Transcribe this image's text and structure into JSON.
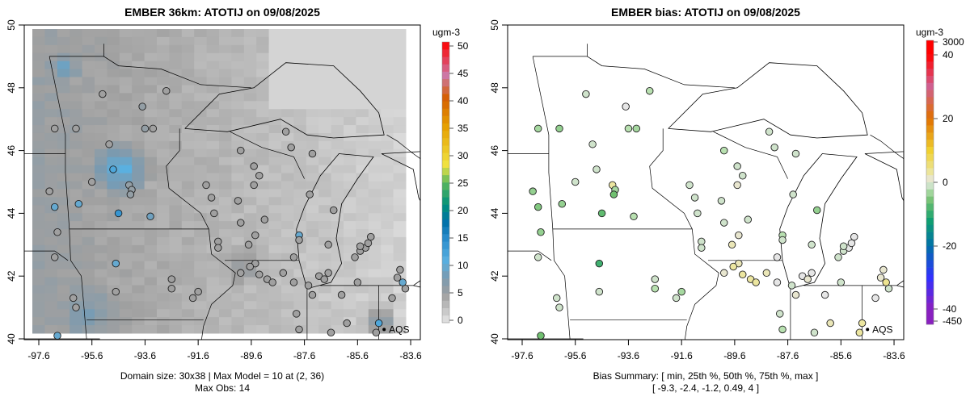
{
  "chart_data": [
    {
      "type": "heatmap+scatter",
      "title": "EMBER 36km: ATOTIJ on 09/08/2025",
      "units": "ugm-3",
      "xlim": [
        -98.1,
        -83.2
      ],
      "ylim": [
        40,
        50
      ],
      "xticks": [
        "-97.6",
        "-95.6",
        "-93.6",
        "-91.6",
        "-89.6",
        "-87.6",
        "-85.6",
        "-83.6"
      ],
      "yticks": [
        "40",
        "42",
        "44",
        "46",
        "48",
        "50"
      ],
      "colorbar_ticks": [
        "0",
        "5",
        "10",
        "15",
        "20",
        "25",
        "30",
        "35",
        "40",
        "45",
        "50"
      ],
      "colorbar_range": [
        0,
        50
      ],
      "footer_line1": "Domain size: 30x38 | Max Model = 10 at (2, 36)",
      "footer_line2": "Max Obs: 14",
      "site_label": "AQS"
    },
    {
      "type": "scatter",
      "title": "EMBER bias: ATOTIJ on 09/08/2025",
      "units": "ugm-3",
      "colorbar_ticks": [
        "3000",
        "40",
        "20",
        "0",
        "-20",
        "-40",
        "-450"
      ],
      "footer_line1": "Bias Summary: [ min, 25th %, 50th %, 75th %, max ]",
      "footer_line2": "[ -9.3,   -2.4,   -1.2,   0.49,   4 ]",
      "site_label": "AQS"
    }
  ],
  "stations": [
    [
      -97.0,
      46.7,
      5,
      -3
    ],
    [
      -96.2,
      46.7,
      5,
      -4
    ],
    [
      -94.95,
      46.2,
      5,
      -1
    ],
    [
      -93.7,
      47.4,
      6,
      0
    ],
    [
      -92.8,
      47.9,
      5,
      -2
    ],
    [
      -95.2,
      47.8,
      5,
      -1
    ],
    [
      -93.6,
      46.7,
      6,
      -2
    ],
    [
      -93.3,
      46.7,
      5,
      -3
    ],
    [
      -94.8,
      45.4,
      12,
      -1
    ],
    [
      -94.2,
      44.9,
      6,
      3
    ],
    [
      -94.1,
      44.75,
      6,
      -3
    ],
    [
      -94.15,
      44.6,
      6,
      -6
    ],
    [
      -95.6,
      45.0,
      5,
      -1
    ],
    [
      -97.2,
      44.7,
      5,
      -4
    ],
    [
      -97.0,
      44.2,
      10,
      -5
    ],
    [
      -96.1,
      44.3,
      10,
      -4
    ],
    [
      -94.6,
      44.0,
      14,
      -7
    ],
    [
      -93.4,
      43.9,
      9,
      -2
    ],
    [
      -96.9,
      43.4,
      5,
      -4
    ],
    [
      -97.0,
      42.6,
      5,
      -1
    ],
    [
      -94.7,
      42.4,
      10,
      -9
    ],
    [
      -94.7,
      41.5,
      5,
      -1
    ],
    [
      -92.6,
      41.9,
      5,
      -1
    ],
    [
      -92.6,
      41.6,
      5,
      -2
    ],
    [
      -91.6,
      41.5,
      5,
      -3
    ],
    [
      -91.8,
      41.3,
      5,
      -1
    ],
    [
      -96.3,
      41.3,
      5,
      -1
    ],
    [
      -96.2,
      41.0,
      5,
      -1
    ],
    [
      -96.9,
      40.1,
      10,
      -6
    ],
    [
      -91.0,
      44.0,
      5,
      -1
    ],
    [
      -90.1,
      44.4,
      5,
      -1
    ],
    [
      -89.5,
      44.9,
      5,
      1
    ],
    [
      -89.3,
      45.2,
      5,
      -1
    ],
    [
      -90.0,
      46.0,
      5,
      -2
    ],
    [
      -88.3,
      46.6,
      5,
      -1
    ],
    [
      -89.1,
      43.8,
      5,
      -1
    ],
    [
      -90.0,
      43.7,
      5,
      -1
    ],
    [
      -90.85,
      43.1,
      5,
      -1
    ],
    [
      -90.85,
      42.9,
      5,
      -1
    ],
    [
      -89.7,
      43.0,
      5,
      2
    ],
    [
      -89.45,
      43.3,
      5,
      1
    ],
    [
      -89.45,
      42.4,
      5,
      2
    ],
    [
      -89.65,
      42.3,
      5,
      3
    ],
    [
      -90.0,
      42.1,
      5,
      1
    ],
    [
      -89.3,
      42.05,
      5,
      3
    ],
    [
      -89.0,
      41.9,
      5,
      3
    ],
    [
      -88.8,
      41.8,
      5,
      3
    ],
    [
      -88.4,
      42.1,
      5,
      2
    ],
    [
      -88.0,
      42.6,
      5,
      0
    ],
    [
      -87.4,
      44.6,
      5,
      -1
    ],
    [
      -87.8,
      43.3,
      10,
      -2
    ],
    [
      -87.8,
      43.15,
      5,
      -1
    ],
    [
      -88.0,
      41.8,
      5,
      0
    ],
    [
      -87.45,
      41.7,
      5,
      -1
    ],
    [
      -87.05,
      42.0,
      5,
      0
    ],
    [
      -86.85,
      41.9,
      5,
      1
    ],
    [
      -87.9,
      40.8,
      5,
      -1
    ],
    [
      -87.8,
      40.3,
      5,
      -2
    ],
    [
      -87.3,
      41.4,
      5,
      1
    ],
    [
      -86.7,
      42.1,
      5,
      0
    ],
    [
      -85.7,
      42.6,
      5,
      -1
    ],
    [
      -85.5,
      42.8,
      5,
      -1
    ],
    [
      -85.3,
      42.9,
      5,
      0
    ],
    [
      -85.5,
      42.95,
      5,
      -1
    ],
    [
      -85.2,
      43.05,
      5,
      0
    ],
    [
      -85.1,
      43.25,
      5,
      0
    ],
    [
      -86.7,
      43.0,
      5,
      -1
    ],
    [
      -86.2,
      41.4,
      5,
      0
    ],
    [
      -86.0,
      40.5,
      5,
      2
    ],
    [
      -86.6,
      40.2,
      5,
      -1
    ],
    [
      -85.6,
      41.8,
      5,
      -1
    ],
    [
      -84.8,
      40.5,
      12,
      3
    ],
    [
      -84.9,
      40.2,
      5,
      3
    ],
    [
      -84.3,
      41.3,
      5,
      0
    ],
    [
      -84.1,
      41.95,
      5,
      1
    ],
    [
      -84.0,
      42.2,
      5,
      1
    ],
    [
      -83.8,
      41.6,
      5,
      -1
    ],
    [
      -83.9,
      41.8,
      10,
      4
    ],
    [
      -86.5,
      44.1,
      5,
      -4
    ],
    [
      -87.3,
      45.9,
      5,
      -1
    ],
    [
      -88.1,
      46.1,
      5,
      -1
    ],
    [
      -89.5,
      45.5,
      5,
      -1
    ],
    [
      -91.1,
      44.5,
      5,
      -1
    ],
    [
      -91.3,
      44.9,
      5,
      -1
    ]
  ],
  "aqs_site": [
    -84.6,
    40.3
  ]
}
